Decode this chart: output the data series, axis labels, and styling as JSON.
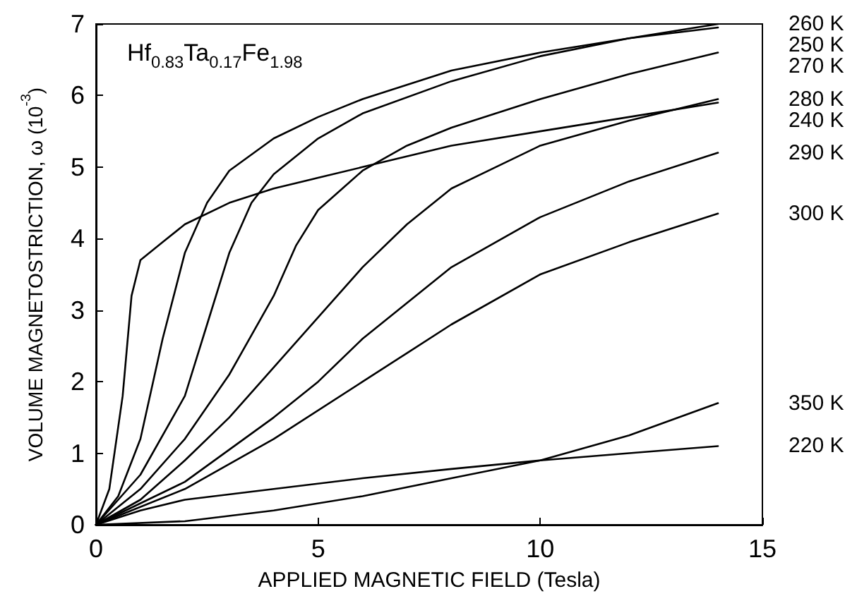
{
  "chart_data": {
    "type": "line",
    "xlabel": "APPLIED MAGNETIC FIELD (Tesla)",
    "ylabel": "VOLUME MAGNETOSTRICTION, ω (10$^{-3}$)",
    "annotations": [
      "Hf$_{0.83}$Ta$_{0.17}$Fe$_{1.98}$"
    ],
    "xlim": [
      0,
      15
    ],
    "xticks": [
      0,
      5,
      10,
      15
    ],
    "ylim": [
      0,
      7
    ],
    "yticks": [
      0,
      1,
      2,
      3,
      4,
      5,
      6,
      7
    ],
    "grid": false,
    "legend": false,
    "marker": "none",
    "line_style": "solid",
    "series": [
      {
        "name": "240 K",
        "color": "#000000",
        "x": [
          0,
          0.3,
          0.6,
          0.8,
          1,
          1.5,
          2,
          3,
          4,
          5,
          6,
          8,
          10,
          12,
          14
        ],
        "values": [
          0,
          0.5,
          1.8,
          3.2,
          3.7,
          3.95,
          4.2,
          4.5,
          4.7,
          4.85,
          5.0,
          5.3,
          5.5,
          5.7,
          5.9
        ]
      },
      {
        "name": "250 K",
        "color": "#000000",
        "x": [
          0,
          0.5,
          1,
          1.5,
          2,
          2.5,
          3,
          4,
          5,
          6,
          8,
          10,
          12,
          14
        ],
        "values": [
          0,
          0.4,
          1.2,
          2.6,
          3.8,
          4.5,
          4.95,
          5.4,
          5.7,
          5.95,
          6.35,
          6.6,
          6.8,
          6.95
        ]
      },
      {
        "name": "260 K",
        "color": "#000000",
        "x": [
          0,
          1,
          2,
          2.5,
          3,
          3.5,
          4,
          5,
          6,
          8,
          10,
          12,
          14
        ],
        "values": [
          0,
          0.7,
          1.8,
          2.8,
          3.8,
          4.5,
          4.9,
          5.4,
          5.75,
          6.2,
          6.55,
          6.8,
          7.0
        ]
      },
      {
        "name": "270 K",
        "color": "#000000",
        "x": [
          0,
          1,
          2,
          3,
          4,
          4.5,
          5,
          6,
          7,
          8,
          10,
          12,
          14
        ],
        "values": [
          0,
          0.5,
          1.2,
          2.1,
          3.2,
          3.9,
          4.4,
          4.95,
          5.3,
          5.55,
          5.95,
          6.3,
          6.6
        ]
      },
      {
        "name": "280 K",
        "color": "#000000",
        "x": [
          0,
          1,
          2,
          3,
          4,
          5,
          6,
          7,
          8,
          9,
          10,
          12,
          14
        ],
        "values": [
          0,
          0.35,
          0.9,
          1.5,
          2.2,
          2.9,
          3.6,
          4.2,
          4.7,
          5.0,
          5.3,
          5.65,
          5.95
        ]
      },
      {
        "name": "290 K",
        "color": "#000000",
        "x": [
          0,
          2,
          4,
          5,
          6,
          7,
          8,
          10,
          12,
          14
        ],
        "values": [
          0,
          0.6,
          1.5,
          2.0,
          2.6,
          3.1,
          3.6,
          4.3,
          4.8,
          5.2
        ]
      },
      {
        "name": "300 K",
        "color": "#000000",
        "x": [
          0,
          2,
          4,
          6,
          7,
          8,
          10,
          12,
          14
        ],
        "values": [
          0,
          0.5,
          1.2,
          2.0,
          2.4,
          2.8,
          3.5,
          3.95,
          4.35
        ]
      },
      {
        "name": "350 K",
        "color": "#000000",
        "x": [
          0,
          2,
          4,
          6,
          8,
          10,
          12,
          14
        ],
        "values": [
          0,
          0.05,
          0.2,
          0.4,
          0.65,
          0.9,
          1.25,
          1.7
        ]
      },
      {
        "name": "220 K",
        "color": "#000000",
        "x": [
          0,
          1,
          2,
          4,
          6,
          8,
          10,
          12,
          14
        ],
        "values": [
          0,
          0.2,
          0.35,
          0.5,
          0.65,
          0.78,
          0.9,
          1.0,
          1.1
        ]
      }
    ]
  }
}
